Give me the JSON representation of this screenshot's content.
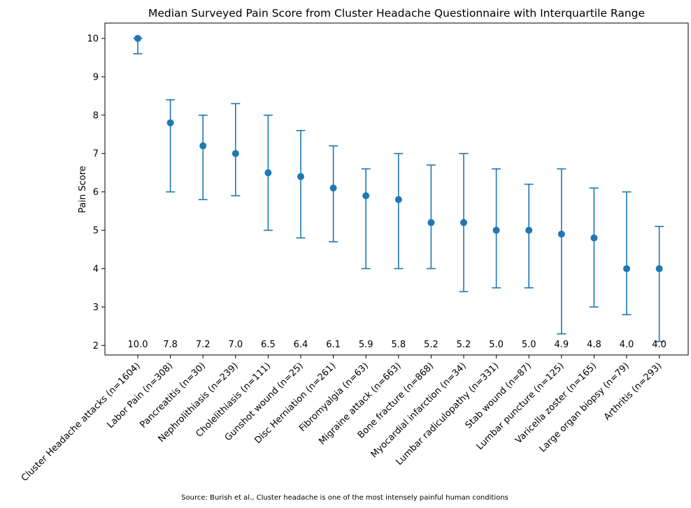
{
  "chart_data": {
    "type": "errorbar",
    "title": "Median Surveyed Pain Score from Cluster Headache Questionnaire with Interquartile Range",
    "xlabel": "",
    "ylabel": "Pain Score",
    "ylim": [
      1.75,
      10.4
    ],
    "yticks": [
      2,
      3,
      4,
      5,
      6,
      7,
      8,
      9,
      10
    ],
    "grid": false,
    "color": "#1f77b4",
    "source": "Source: Burish et al., Cluster headache is one of the most intensely painful human conditions",
    "categories": [
      "Cluster Headache attacks (n=1604)",
      "Labor Pain (n=308)",
      "Pancreatitis (n=30)",
      "Nephrolithiasis (n=239)",
      "Cholelithiasis (n=111)",
      "Gunshot wound (n=25)",
      "Disc Herniation (n=261)",
      "Fibromyalgia (n=63)",
      "Migraine attack (n=663)",
      "Bone fracture (n=868)",
      "Myocardial infarction (n=34)",
      "Lumbar radiculopathy (n=331)",
      "Stab wound (n=87)",
      "Lumbar puncture (n=125)",
      "Varicella zoster (n=165)",
      "Large organ biopsy (n=79)",
      "Arthritis (n=293)"
    ],
    "median": [
      10.0,
      7.8,
      7.2,
      7.0,
      6.5,
      6.4,
      6.1,
      5.9,
      5.8,
      5.2,
      5.2,
      5.0,
      5.0,
      4.9,
      4.8,
      4.0,
      4.0
    ],
    "q1": [
      9.6,
      6.0,
      5.8,
      5.9,
      5.0,
      4.8,
      4.7,
      4.0,
      4.0,
      4.0,
      3.4,
      3.5,
      3.5,
      2.3,
      3.0,
      2.8,
      2.1
    ],
    "q3": [
      10.0,
      8.4,
      8.0,
      8.3,
      8.0,
      7.6,
      7.2,
      6.6,
      7.0,
      6.7,
      7.0,
      6.6,
      6.2,
      6.6,
      6.1,
      6.0,
      5.1
    ],
    "data_labels": [
      "10.0",
      "7.8",
      "7.2",
      "7.0",
      "6.5",
      "6.4",
      "6.1",
      "5.9",
      "5.8",
      "5.2",
      "5.2",
      "5.0",
      "5.0",
      "4.9",
      "4.8",
      "4.0",
      "4.0"
    ]
  }
}
